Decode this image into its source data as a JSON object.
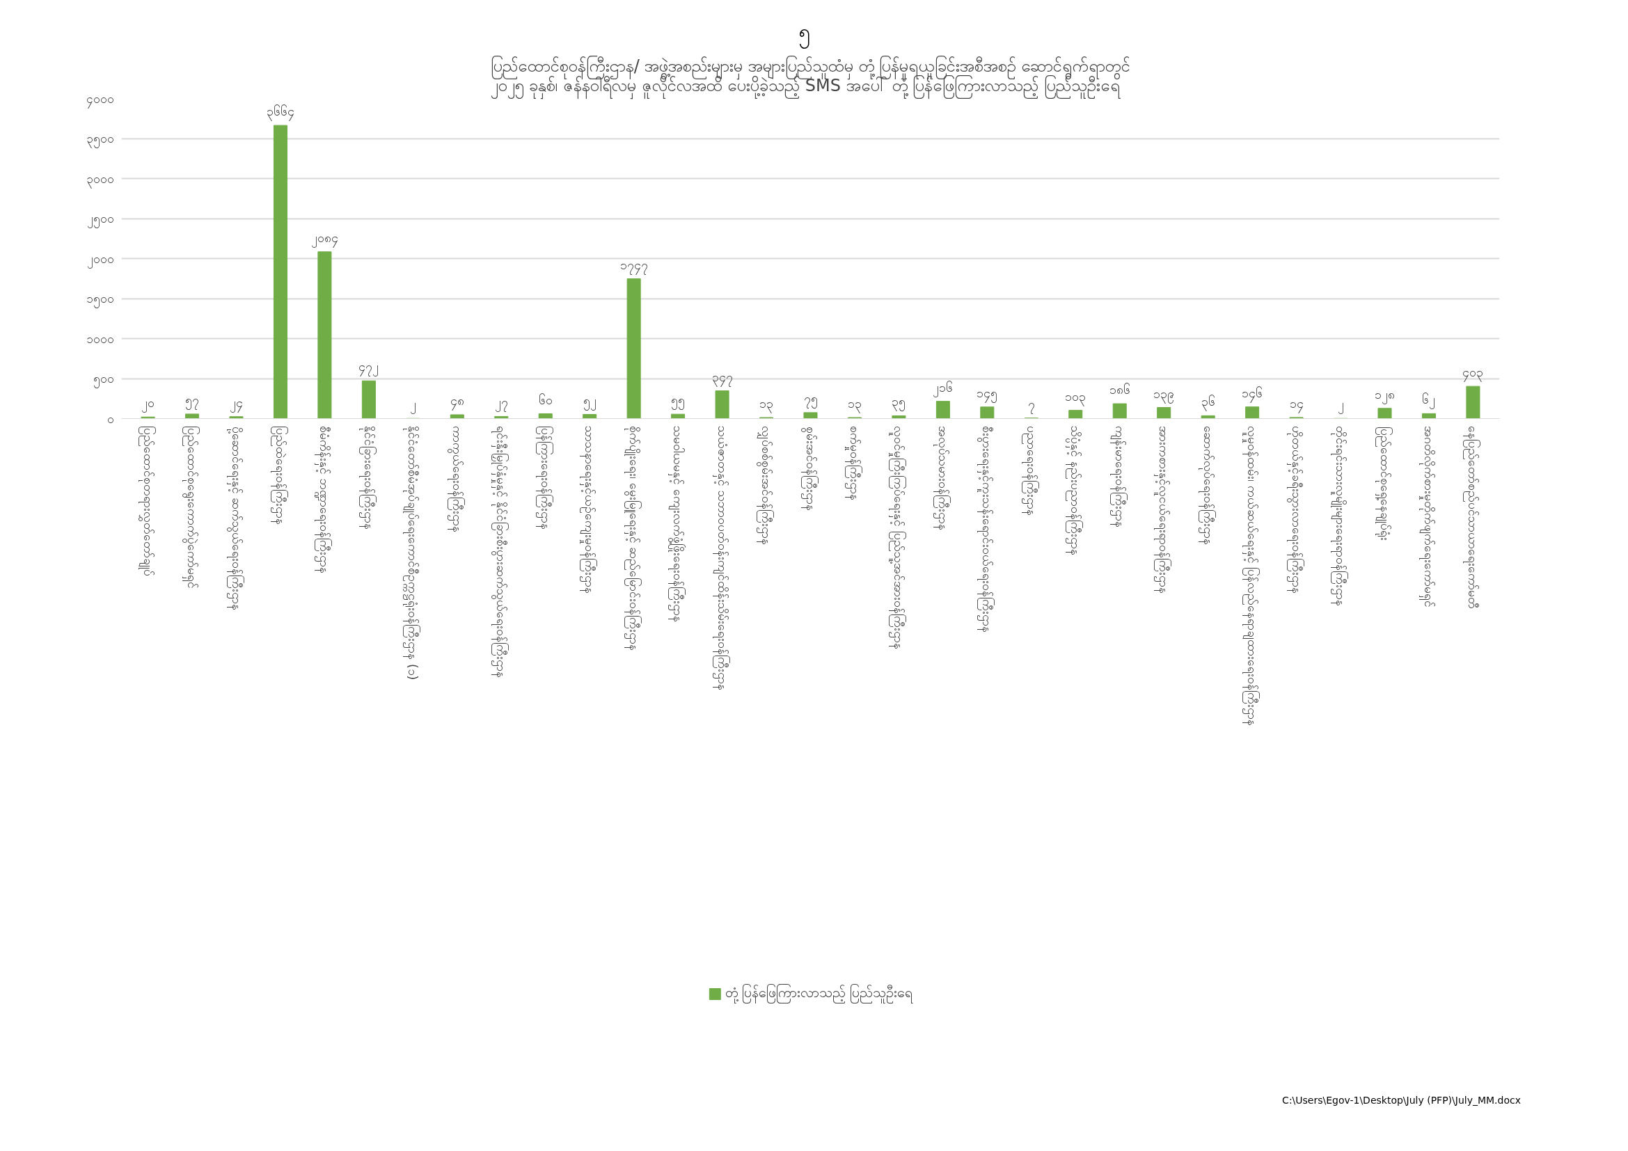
{
  "chart_data": {
    "type": "bar",
    "title": "ပြည်ထောင်စုဝန်ကြီးဌာန/ အဖွဲ့အစည်းများမှ အများပြည်သူထံမှ တုံ့ပြန်မှုရယူခြင်းအစီအစဉ် ဆောင်ရွက်ရာတွင်\n၂၀၂၅ ခုနှစ်၊ ဇန်နဝါရီလမှ ဇူလိုင်လအထိ ပေးပို့ခဲ့သည့် SMS အပေါ် တုံ့ပြန်ဖြေကြားလာသည့် ပြည်သူဦးရေ",
    "categories": [
      "ပြည်ထောင်စုတရားလွှတ်တော်ချုပ်",
      "ပြည်ထောင်စုရွေးကောက်ပွဲကော်မရှင်",
      "ပို့ဆောင်ရေးနှင့် ဆက်သွယ်ရေးဝန်ကြီးဌာန",
      "ပြည်ထဲရေးဝန်ကြီးဌာန",
      "စီမံကိန်းနှင့် ဘဏ္ဍာရေးဝန်ကြီးဌာန",
      "နိုင်ငံခြားရေးဝန်ကြီးဌာန",
      "နိုင်ငံတော်စီမံအုပ်ချုပ်ရေးကောင်စီဥက္ကဋ္ဌရုံးဝန်ကြီးဌာန (၁)",
      "ကာကွယ်ရေးဝန်ကြီးဌာန",
      "ရင်းနှီးမြှုပ်နှံမှုနှင့် နိုင်ငံခြားစီးပွားဆက်သွယ်ရေးဝန်ကြီးဌာန",
      "ပြန်ကြားရေးဝန်ကြီးဌာန",
      "သာသနာရေးနှင့်ယဉ်ကျေးမှုဝန်ကြီးဌာန",
      "စိုက်ပျိုးရေး၊ မွေးမြူရေးနှင့် ဆည်မြောင်းဝန်ကြီးဌာန",
      "သမဝါယမနှင့် ကျေးလက်ဖွံ့ဖြိုးရေးဝန်ကြီးဌာန",
      "သယံဇာတနှင့် သဘာဝပတ်ဝန်းကျင်ထိန်းသိမ်းရေးဝန်ကြီးဌာန",
      "လျှပ်စစ်စွမ်းအင်ဝန်ကြီးဌာန",
      "စွမ်းအင်ဝန်ကြီးဌာန",
      "စက်မှုဝန်ကြီးဌာန",
      "လူဝင်မှုကြီးကြပ်ရေးနှင့် ပြည်သူ့အင်အားဝန်ကြီးဌာန",
      "အလုပ်သမားဝန်ကြီးဌာန",
      "စီးပွားရေးနှင့်ကူးသန်းရောင်းဝယ်ရေးဝန်ကြီးဌာန",
      "ပညာရေးဝန်ကြီးဌာန",
      "သိပ္ပံနှင့် နည်းပညာဝန်ကြီးဌာန",
      "ကျန်းမာရေးဝန်ကြီးဌာန",
      "အားကစားနှင့်လူငယ်ရေးရာဝန်ကြီးဌာန",
      "ဆောက်လုပ်ရေးဝန်ကြီးဌာန",
      "လူမှုဝန်ထမ်း၊ ကယ်ဆယ်ရေးနှင့် ပြန်လည်နေရာချထားရေးဝန်ကြီးဌာန",
      "ဟိုတယ်နှင့်ခရီးသွားလာရေးဝန်ကြီးဌာန",
      "တိုင်းရင်းသားလူမျိုးများရေးရာဝန်ကြီးဌာန",
      "ပြည်ထောင်စုရှေ့နေချုပ်ရုံး",
      "အဂတိလိုက်စားမှုတိုက်ဖျက်ရေးကော်မရှင်",
      "နေပြည်တော်စည်ပင်သာယာရေးကော်မတီ"
    ],
    "series": [
      {
        "name": "တုံ့ပြန်ဖြေကြားလာသည့် ပြည်သူဦးရေ",
        "color": "#70ad47",
        "values": [
          20,
          57,
          24,
          3664,
          2084,
          472,
          2,
          48,
          27,
          60,
          52,
          1747,
          55,
          347,
          13,
          75,
          13,
          35,
          216,
          145,
          7,
          103,
          186,
          139,
          36,
          146,
          14,
          2,
          128,
          62,
          403
        ],
        "value_labels": [
          "၂၀",
          "၅၇",
          "၂၄",
          "၃၆၆၄",
          "၂၀၈၄",
          "၄၇၂",
          "၂",
          "၄၈",
          "၂၇",
          "၆၀",
          "၅၂",
          "၁၇၄၇",
          "၅၅",
          "၃၄၇",
          "၁၃",
          "၇၅",
          "၁၃",
          "၃၅",
          "၂၁၆",
          "၁၄၅",
          "၇",
          "၁၀၃",
          "၁၈၆",
          "၁၃၉",
          "၃၆",
          "၁၄၆",
          "၁၄",
          "၂",
          "၁၂၈",
          "၆၂",
          "၄၀၃"
        ]
      }
    ],
    "ylim": [
      0,
      4000
    ],
    "yticks": [
      {
        "value": 0,
        "label": "၀"
      },
      {
        "value": 500,
        "label": "၅၀၀"
      },
      {
        "value": 1000,
        "label": "၁၀၀၀"
      },
      {
        "value": 1500,
        "label": "၁၅၀၀"
      },
      {
        "value": 2000,
        "label": "၂၀၀၀"
      },
      {
        "value": 2500,
        "label": "၂၅၀၀"
      },
      {
        "value": 3000,
        "label": "၃၀၀၀"
      },
      {
        "value": 3500,
        "label": "၃၅၀၀"
      },
      {
        "value": 4000,
        "label": "၄၀၀၀"
      }
    ],
    "grid": "y",
    "legend": "bottom",
    "annotations": [
      "၅",
      "C:\\Users\\Egov-1\\Desktop\\July (PFP)\\July_MM.docx"
    ]
  }
}
